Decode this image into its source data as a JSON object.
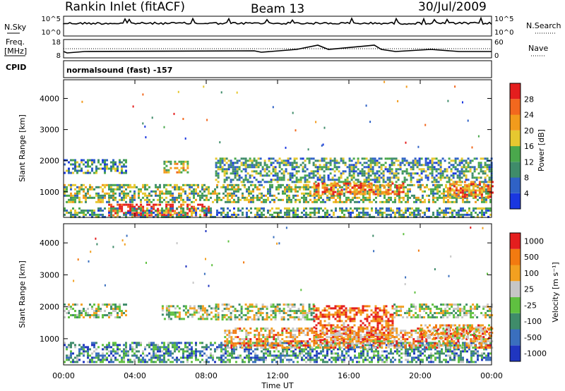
{
  "header": {
    "station": "Rankin Inlet (fitACF)",
    "beam": "Beam 13",
    "date": "30/Jul/2009"
  },
  "status": {
    "left_top_label": "N.Sky",
    "left_mid_label_1": "Freq.",
    "left_mid_label_2": "[MHz]",
    "left_cpid_label": "CPID",
    "right_top_label": "N.Search",
    "right_mid_label": "Nave",
    "nsky_ticks": [
      "10^5",
      "10^0"
    ],
    "nsearch_ticks": [
      "10^5",
      "10^0"
    ],
    "freq_ticks": [
      "18",
      "8"
    ],
    "nave_ticks": [
      "60",
      "0"
    ],
    "cpid_text": "normalsound (fast) -157"
  },
  "chart_data": [
    {
      "type": "heatmap",
      "name": "power-panel",
      "ylabel": "Slant Range [km]",
      "xlabel": "",
      "x_range_hours": [
        0,
        24
      ],
      "ylim": [
        180,
        4600
      ],
      "yticks": [
        1000,
        2000,
        3000,
        4000
      ],
      "colorbar": {
        "label": "Power [dB]",
        "range": [
          0,
          32
        ],
        "ticks": [
          4,
          8,
          12,
          16,
          20,
          24,
          28
        ],
        "colors": [
          "#1a37e0",
          "#2f62c6",
          "#3f8c6a",
          "#4aa84c",
          "#e6c830",
          "#f29b1c",
          "#f2681e",
          "#e41e1e"
        ]
      },
      "bands": [
        {
          "t0": 0.0,
          "t1": 24.0,
          "r0": 700,
          "r1": 1250,
          "level": 0.45
        },
        {
          "t0": 0.0,
          "t1": 3.5,
          "r0": 1600,
          "r1": 2050,
          "level": 0.3
        },
        {
          "t0": 2.5,
          "t1": 8.3,
          "r0": 250,
          "r1": 620,
          "level": 0.95
        },
        {
          "t0": 5.6,
          "t1": 7.0,
          "r0": 1650,
          "r1": 2000,
          "level": 0.55
        },
        {
          "t0": 8.5,
          "t1": 24.0,
          "r0": 1300,
          "r1": 2100,
          "level": 0.35
        },
        {
          "t0": 14.0,
          "t1": 19.0,
          "r0": 900,
          "r1": 1300,
          "level": 0.8
        },
        {
          "t0": 21.5,
          "t1": 24.0,
          "r0": 850,
          "r1": 1350,
          "level": 0.75
        },
        {
          "t0": 0.0,
          "t1": 24.0,
          "r0": 180,
          "r1": 500,
          "level": 0.35
        }
      ]
    },
    {
      "type": "heatmap",
      "name": "velocity-panel",
      "ylabel": "Slant Range [km]",
      "xlabel": "Time UT",
      "x_range_hours": [
        0,
        24
      ],
      "ylim": [
        180,
        4600
      ],
      "yticks": [
        1000,
        2000,
        3000,
        4000
      ],
      "xticks": [
        "00:00",
        "04:00",
        "08:00",
        "12:00",
        "16:00",
        "20:00",
        "00:00"
      ],
      "colorbar": {
        "label": "Velocity [m s⁻¹]",
        "ticks": [
          "1000",
          "500",
          "100",
          "25",
          "-25",
          "-100",
          "-500",
          "-1000"
        ],
        "colors": [
          "#2036c0",
          "#3a6fbe",
          "#3f8c6a",
          "#5fc040",
          "#c6c6c6",
          "#f2a020",
          "#f27a10",
          "#e41e1e"
        ]
      },
      "bands": [
        {
          "t0": 0.0,
          "t1": 3.5,
          "r0": 1650,
          "r1": 2100,
          "level": 0.5
        },
        {
          "t0": 0.0,
          "t1": 24.0,
          "r0": 250,
          "r1": 900,
          "level": 0.3
        },
        {
          "t0": 5.5,
          "t1": 8.5,
          "r0": 1600,
          "r1": 2050,
          "level": 0.5
        },
        {
          "t0": 8.5,
          "t1": 14.0,
          "r0": 1600,
          "r1": 2100,
          "level": 0.5
        },
        {
          "t0": 14.0,
          "t1": 18.5,
          "r0": 900,
          "r1": 2050,
          "level": 0.85
        },
        {
          "t0": 18.5,
          "t1": 24.0,
          "r0": 1700,
          "r1": 2100,
          "level": 0.5
        },
        {
          "t0": 9.0,
          "t1": 24.0,
          "r0": 700,
          "r1": 1350,
          "level": 0.7
        },
        {
          "t0": 20.0,
          "t1": 24.0,
          "r0": 1050,
          "r1": 1450,
          "level": 0.7
        }
      ]
    }
  ]
}
